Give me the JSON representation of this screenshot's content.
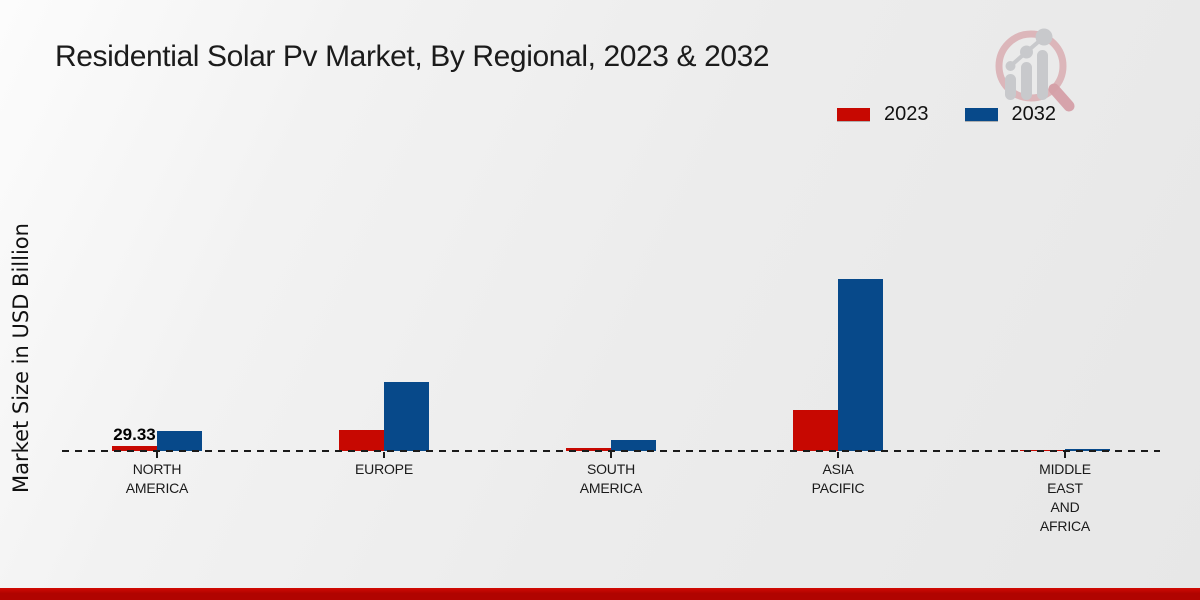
{
  "page": {
    "title": "Residential Solar Pv Market, By Regional, 2023 & 2032"
  },
  "y_axis": {
    "label": "Market Size in USD Billion"
  },
  "legend": {
    "items": [
      {
        "label": "2023",
        "color": "#c70801"
      },
      {
        "label": "2032",
        "color": "#07498a"
      }
    ]
  },
  "colors": {
    "series_2023": "#c70801",
    "series_2032": "#07498a",
    "axis": "#1a1a1a",
    "footer_band_top": "#d20a03",
    "footer_band": "#b00400",
    "background": "#ececec",
    "logo_ring_pink": "#dab0b5",
    "logo_gray": "#c8c9cc"
  },
  "logo": {
    "name": "magnifier-bar-chart-logo"
  },
  "chart_data": {
    "type": "bar",
    "title": "Residential Solar Pv Market, By Regional, 2023 & 2032",
    "xlabel": "",
    "ylabel": "Market Size in USD Billion",
    "categories": [
      "North America",
      "Europe",
      "South America",
      "Asia Pacific",
      "Middle East and Africa"
    ],
    "tick_labels": [
      "NORTH\nAMERICA",
      "EUROPE",
      "SOUTH\nAMERICA",
      "ASIA\nPACIFIC",
      "MIDDLE\nEAST\nAND\nAFRICA"
    ],
    "series": [
      {
        "name": "2023",
        "color": "#c70801",
        "values": [
          29.33,
          125,
          15,
          245,
          5
        ],
        "point_labels": [
          "29.33",
          "",
          "",
          "",
          ""
        ]
      },
      {
        "name": "2032",
        "color": "#07498a",
        "values": [
          120,
          414,
          66,
          1032,
          11
        ],
        "point_labels": [
          "",
          "",
          "",
          "",
          ""
        ]
      }
    ],
    "baseline_value": 0,
    "baseline_style": "dashed",
    "legend_position": "top-right",
    "grid": false,
    "y_ticks_shown": false
  }
}
